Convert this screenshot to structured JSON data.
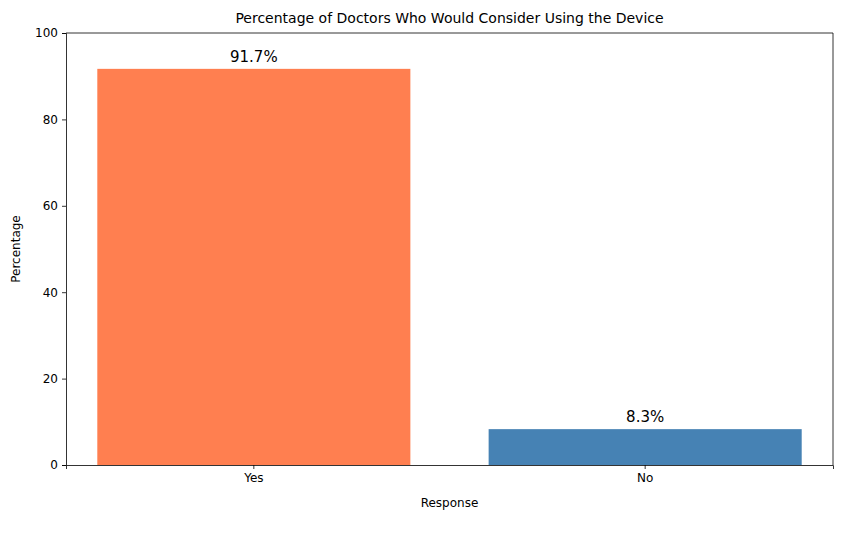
{
  "chart_data": {
    "type": "bar",
    "title": "Percentage of Doctors Who Would Consider Using the Device",
    "x_label": "Response",
    "y_label": "Percentage",
    "categories": [
      "Yes",
      "No"
    ],
    "values": [
      91.7,
      8.3
    ],
    "value_labels": [
      "91.7%",
      "8.3%"
    ],
    "colors": [
      "#ff7f50",
      "#4682b4"
    ],
    "ylim": [
      0,
      100
    ],
    "yticks": [
      0,
      20,
      40,
      60,
      80,
      100
    ],
    "grid": false,
    "data_labels": true
  }
}
